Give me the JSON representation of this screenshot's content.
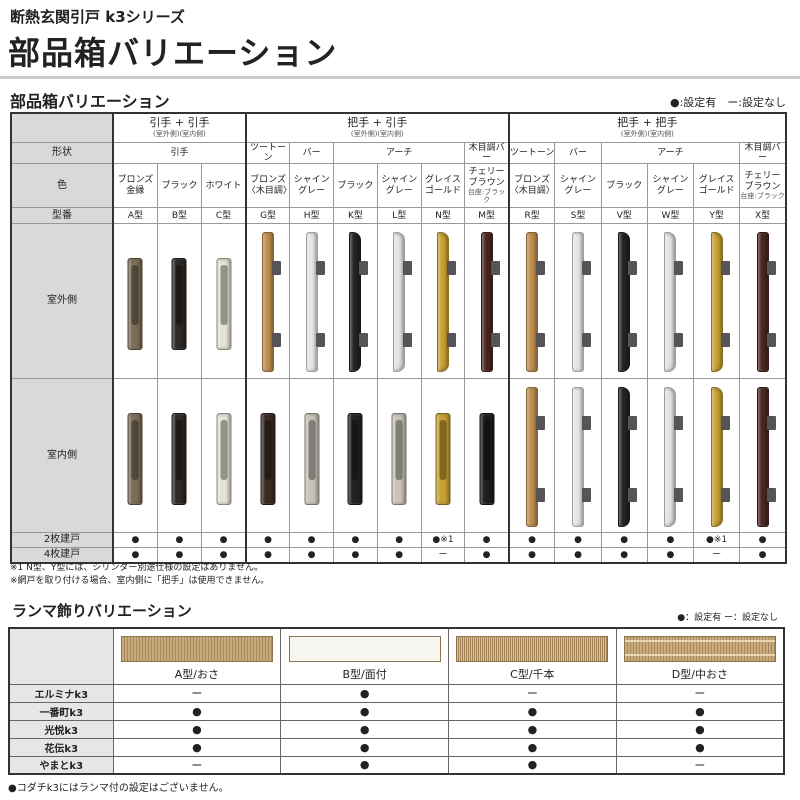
{
  "header": {
    "subtitle": "断熱玄関引戸 k3シリーズ",
    "title": "部品箱バリエーション"
  },
  "section1": {
    "title": "部品箱バリエーション",
    "legend": "●:設定有　ー:設定なし",
    "groups": [
      {
        "title": "引手 + 引手",
        "sub": "(室外側)(室内側)"
      },
      {
        "title": "把手 + 引手",
        "sub": "(室外側)(室内側)"
      },
      {
        "title": "把手 + 把手",
        "sub": "(室外側)(室内側)"
      }
    ],
    "row_labels": {
      "shape": "形状",
      "color": "色",
      "model": "型番",
      "outer": "室外側",
      "inner": "室内側",
      "two": "2枚建戸",
      "four": "4枚建戸"
    },
    "shapes": [
      {
        "label": "引手",
        "span": 3
      },
      {
        "label": "ツートーン",
        "span": 1,
        "g": 1
      },
      {
        "label": "バー",
        "span": 1
      },
      {
        "label": "アーチ",
        "span": 3
      },
      {
        "label": "木目調バー",
        "span": 1
      },
      {
        "label": "ツートーン",
        "span": 1,
        "g": 1
      },
      {
        "label": "バー",
        "span": 1
      },
      {
        "label": "アーチ",
        "span": 3
      },
      {
        "label": "木目調バー",
        "span": 1
      }
    ],
    "items": [
      {
        "model": "A型",
        "color": "ブロンズ\n金縁",
        "note": "",
        "hex": "#7d6e58",
        "outer": "pull",
        "inner": "pull",
        "two": "●",
        "four": "●"
      },
      {
        "model": "B型",
        "color": "ブラック",
        "note": "",
        "hex": "#2e2926",
        "outer": "pull",
        "inner": "pull",
        "two": "●",
        "four": "●"
      },
      {
        "model": "C型",
        "color": "ホワイト",
        "note": "",
        "hex": "#e6e2d4",
        "outer": "pull",
        "inner": "pull",
        "two": "●",
        "four": "●"
      },
      {
        "model": "G型",
        "color": "ブロンズ\n〈木目調〉",
        "note": "",
        "hex": "#c08e4c",
        "outer": "bar",
        "inner": "pull",
        "inhex": "#3a2a22",
        "two": "●",
        "four": "●"
      },
      {
        "model": "H型",
        "color": "シャイン\nグレー",
        "note": "",
        "hex": "#e4e6e8",
        "outer": "bar",
        "inner": "pull",
        "inhex": "#c8c2b8",
        "two": "●",
        "four": "●"
      },
      {
        "model": "K型",
        "color": "ブラック",
        "note": "",
        "hex": "#252322",
        "outer": "arch",
        "inner": "pull",
        "two": "●",
        "four": "●"
      },
      {
        "model": "L型",
        "color": "シャイン\nグレー",
        "note": "",
        "hex": "#e0e2e4",
        "outer": "arch",
        "inner": "pull",
        "inhex": "#c8c2b8",
        "two": "●",
        "four": "●"
      },
      {
        "model": "N型",
        "color": "グレイス\nゴールド",
        "note": "",
        "hex": "#c9a032",
        "outer": "arch",
        "inner": "pull",
        "two": "●※1",
        "four": "ー"
      },
      {
        "model": "M型",
        "color": "チェリー\nブラウン",
        "note": "台座:ブラック",
        "hex": "#4a2620",
        "outer": "bar",
        "inner": "pull",
        "inhex": "#1e1c1c",
        "two": "●",
        "four": "●"
      },
      {
        "model": "R型",
        "color": "ブロンズ\n〈木目調〉",
        "note": "",
        "hex": "#c08e4c",
        "outer": "bar",
        "inner": "bar",
        "two": "●",
        "four": "●"
      },
      {
        "model": "S型",
        "color": "シャイン\nグレー",
        "note": "",
        "hex": "#e4e6e8",
        "outer": "bar",
        "inner": "bar",
        "two": "●",
        "four": "●"
      },
      {
        "model": "V型",
        "color": "ブラック",
        "note": "",
        "hex": "#252322",
        "outer": "arch",
        "inner": "arch",
        "two": "●",
        "four": "●"
      },
      {
        "model": "W型",
        "color": "シャイン\nグレー",
        "note": "",
        "hex": "#e0e2e4",
        "outer": "arch",
        "inner": "arch",
        "two": "●",
        "four": "●"
      },
      {
        "model": "Y型",
        "color": "グレイス\nゴールド",
        "note": "",
        "hex": "#c9a032",
        "outer": "arch",
        "inner": "arch",
        "two": "●※1",
        "four": "ー"
      },
      {
        "model": "X型",
        "color": "チェリー\nブラウン",
        "note": "台座:ブラック",
        "hex": "#4a2620",
        "outer": "bar",
        "inner": "bar",
        "two": "●",
        "four": "●"
      }
    ],
    "notes": [
      "※1 N型、Y型には、シリンダー別途仕様の設定はありません。",
      "※網戸を取り付ける場合、室内側に「把手」は使用できません。"
    ]
  },
  "section2": {
    "title": "ランマ飾りバリエーション",
    "legend": "●：設定有 ー：設定なし",
    "columns": [
      {
        "label": "A型/おさ",
        "style": "slats"
      },
      {
        "label": "B型/面付",
        "style": "plain"
      },
      {
        "label": "C型/千本",
        "style": "fine"
      },
      {
        "label": "D型/中おさ",
        "style": "grid"
      }
    ],
    "rows": [
      {
        "name": "エルミナk3",
        "values": [
          "ー",
          "●",
          "ー",
          "ー"
        ]
      },
      {
        "name": "一番町k3",
        "values": [
          "●",
          "●",
          "●",
          "●"
        ]
      },
      {
        "name": "光悦k3",
        "values": [
          "●",
          "●",
          "●",
          "●"
        ]
      },
      {
        "name": "花伝k3",
        "values": [
          "●",
          "●",
          "●",
          "●"
        ]
      },
      {
        "name": "やまとk3",
        "values": [
          "ー",
          "●",
          "●",
          "ー"
        ]
      }
    ],
    "note": "●コダチk3にはランマ付の設定はございません。"
  }
}
